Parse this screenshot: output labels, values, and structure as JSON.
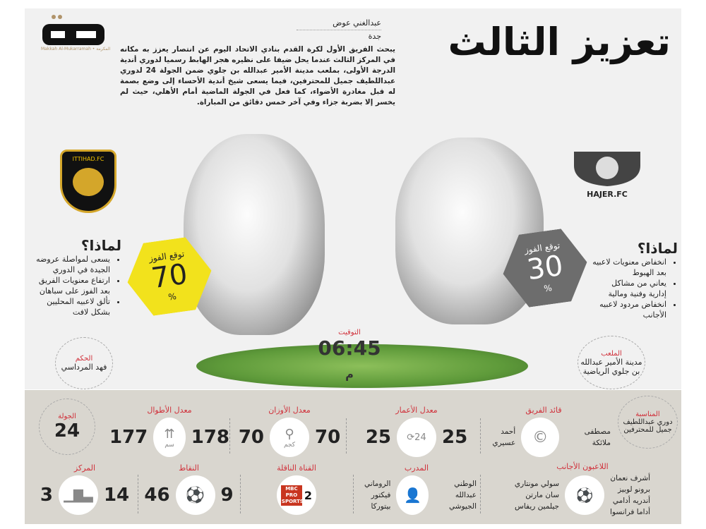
{
  "header": {
    "title": "تعزيز الثالث",
    "author": "عبدالغني عوض",
    "city": "جدة",
    "logo_text": "مكة",
    "logo_sub": "Makkah Al-Mukarramah • المكرمة",
    "lead": "يبحث الفريق الأول لكرة القدم بنادي الاتحاد اليوم عن انتصار يعزز به مكانه في المركز الثالث عندما يحل ضيفا على نظيره هجر الهابط رسميا لدوري أندية الدرجة الأولى، بملعب مدينة الأمير عبدالله بن جلوي ضمن الجولة 24 لدوري عبداللطيف جميل للمحترفين، فيما يسعى شيخ أندية الأحساء إلى وضع بصمة له قبل مغادرة الأضواء، كما فعل في الجولة الماضية أمام الأهلي، حيث لم يخسر إلا بضربة جزاء وفي آخر خمس دقائق من المباراة."
  },
  "ittihad": {
    "badge": "ITTIHAD.FC",
    "win_label": "توقع الفوز",
    "win_value": "70",
    "percent": "%",
    "color": "#f2e21c",
    "why": "لماذا؟",
    "reasons": [
      "يسعى لمواصلة عروضه الجيدة في الدوري",
      "ارتفاع معنويات الفريق بعد الفوز على سباهان",
      "تألق لاعبيه المحليين بشكل لافت"
    ]
  },
  "hajer": {
    "badge": "HAJER.FC",
    "win_label": "توقع الفوز",
    "win_value": "30",
    "percent": "%",
    "color": "#6d6d6d",
    "why": "لماذا؟",
    "reasons": [
      "انخفاض معنويات لاعبيه بعد الهبوط",
      "يعاني من مشاكل إدارية وفنية ومالية",
      "انخفاض مردود لاعبيه الأجانب"
    ]
  },
  "referee": {
    "label": "الحكم",
    "value": "فهد المرداسي"
  },
  "stadium": {
    "label": "الملعب",
    "value": "مدينة الأمير عبدالله بن جلوي الرياضية"
  },
  "time": {
    "label": "التوقيت",
    "value": "06:45",
    "suffix": "م"
  },
  "stats": {
    "occasion": {
      "label": "المناسبة",
      "value": "دوري عبداللطيف جميل للمحترفين"
    },
    "captain": {
      "label": "قائد الفريق",
      "ittihad": "أحمد عسيري",
      "hajer": "مصطفى ملائكة",
      "icon": "captain-c-icon"
    },
    "age": {
      "label": "معدل الأعمار",
      "ittihad": "25",
      "hajer": "25"
    },
    "weight": {
      "label": "معدل الأوزان",
      "ittihad": "70",
      "hajer": "70",
      "unit": "كجم"
    },
    "height": {
      "label": "معدل الأطوال",
      "ittihad": "177",
      "hajer": "178",
      "unit": "سم"
    },
    "round": {
      "label": "الجولة",
      "value": "24"
    },
    "foreigners": {
      "label": "اللاعبون الأجانب",
      "ittihad": [
        "سولي مونتاري",
        "سان مارتن",
        "جيلمين ريفاس"
      ],
      "hajer": [
        "أشرف نعمان",
        "برونو لوبيز",
        "أندريه أدامي",
        "أداما فرانسوا"
      ]
    },
    "coach": {
      "label": "المدرب",
      "ittihad": [
        "الروماني",
        "فيكتور بيتوركا"
      ],
      "hajer": [
        "الوطني",
        "عبدالله الجيوشي"
      ]
    },
    "channel": {
      "label": "القناة الناقلة",
      "logo": "MBC PRO SPORTS",
      "number": "2"
    },
    "points": {
      "label": "النقاط",
      "ittihad": "46",
      "hajer": "9"
    },
    "position": {
      "label": "المركز",
      "ittihad": "3",
      "hajer": "14"
    }
  }
}
